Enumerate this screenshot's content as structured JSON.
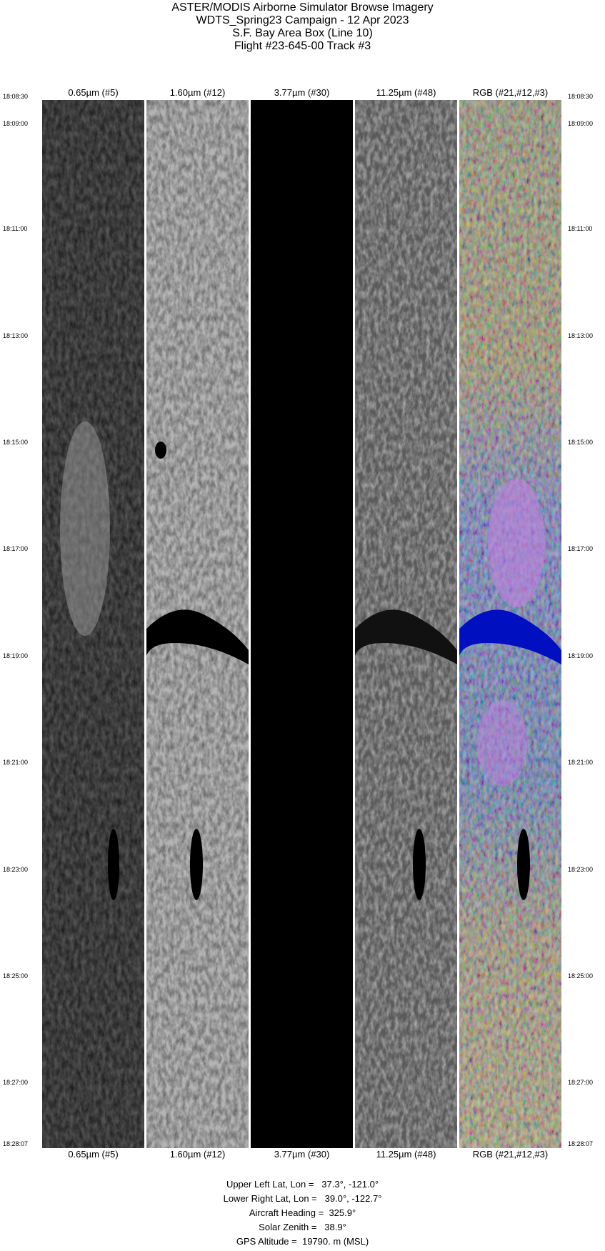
{
  "title": {
    "lines": [
      "ASTER/MODIS Airborne Simulator Browse Imagery",
      "WDTS_Spring23 Campaign - 12 Apr 2023",
      "S.F. Bay Area Box (Line 10)",
      "Flight #23-645-00 Track #3"
    ]
  },
  "panels": [
    {
      "label": "0.65µm (#5)",
      "style": "grayscale-dark"
    },
    {
      "label": "1.60µm (#12)",
      "style": "grayscale-light"
    },
    {
      "label": "3.77µm (#30)",
      "style": "black"
    },
    {
      "label": "11.25µm (#48)",
      "style": "grayscale-mid"
    },
    {
      "label": "RGB (#21,#12,#3)",
      "style": "false-color"
    }
  ],
  "times": [
    "18:08:30",
    "18:09:00",
    "18:11:00",
    "18:13:00",
    "18:15:00",
    "18:17:00",
    "18:19:00",
    "18:21:00",
    "18:23:00",
    "18:25:00",
    "18:27:00",
    "18:28:07"
  ],
  "info": {
    "upper_left": "Upper Left Lat, Lon =   37.3°, -121.0°",
    "lower_right": "Lower Right Lat, Lon =   39.0°, -122.7°",
    "heading": "Aircraft Heading =  325.9°",
    "solar_zenith": "Solar Zenith =   38.9°",
    "gps_altitude": "GPS Altitude =  19790. m (MSL)"
  }
}
